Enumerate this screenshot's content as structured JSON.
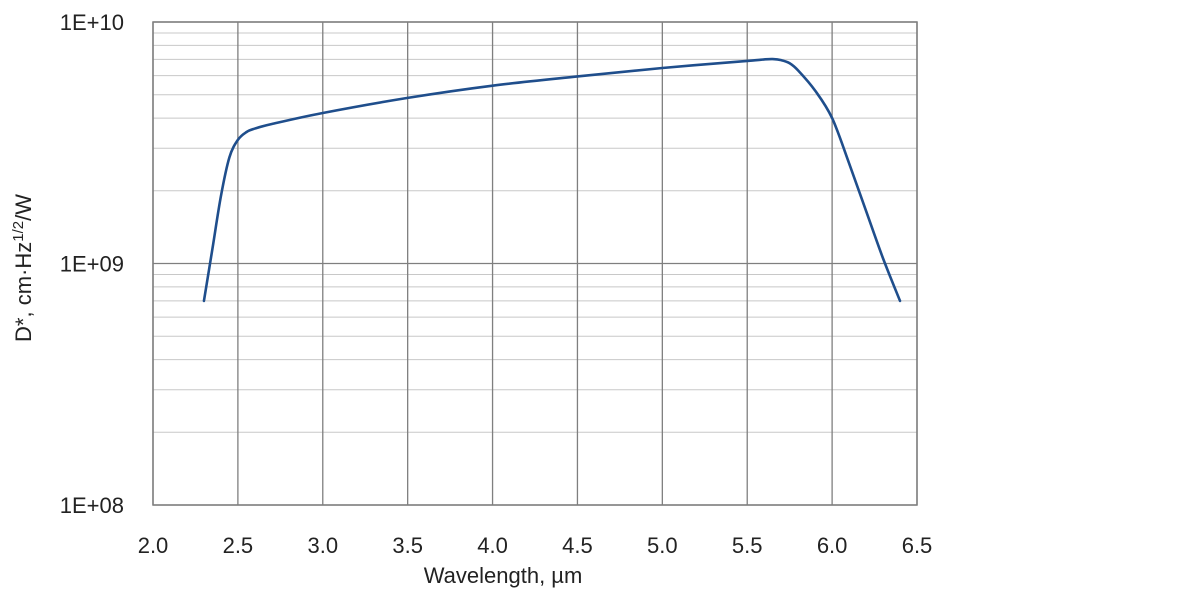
{
  "chart_data": {
    "type": "line",
    "title": "",
    "xlabel": "Wavelength, µm",
    "ylabel_main": "D*, cm·Hz",
    "ylabel_sup": "1/2",
    "ylabel_tail": "/W",
    "xlim": [
      2.0,
      6.5
    ],
    "xticks": [
      2.0,
      2.5,
      3.0,
      3.5,
      4.0,
      4.5,
      5.0,
      5.5,
      6.0,
      6.5
    ],
    "xtick_labels": [
      "2.0",
      "2.5",
      "3.0",
      "3.5",
      "4.0",
      "4.5",
      "5.0",
      "5.5",
      "6.0",
      "6.5"
    ],
    "ylim": [
      100000000.0,
      10000000000.0
    ],
    "yscale": "log",
    "yticks": [
      100000000.0,
      1000000000.0,
      10000000000.0
    ],
    "ytick_labels": [
      "1E+08",
      "1E+09",
      "1E+10"
    ],
    "grid": true,
    "line_color": "#1f4e8c",
    "series": [
      {
        "x": [
          2.3,
          2.35,
          2.4,
          2.45,
          2.5,
          2.55,
          2.6,
          2.7,
          3.0,
          3.5,
          4.0,
          4.5,
          5.0,
          5.5,
          5.6,
          5.65,
          5.7,
          5.75,
          5.8,
          5.9,
          6.0,
          6.1,
          6.2,
          6.3,
          6.4
        ],
        "y": [
          700000000.0,
          1150000000.0,
          1900000000.0,
          2750000000.0,
          3250000000.0,
          3500000000.0,
          3620000000.0,
          3780000000.0,
          4200000000.0,
          4850000000.0,
          5450000000.0,
          5950000000.0,
          6450000000.0,
          6900000000.0,
          7000000000.0,
          7020000000.0,
          6950000000.0,
          6750000000.0,
          6300000000.0,
          5200000000.0,
          4000000000.0,
          2600000000.0,
          1650000000.0,
          1050000000.0,
          700000000.0
        ]
      }
    ]
  }
}
